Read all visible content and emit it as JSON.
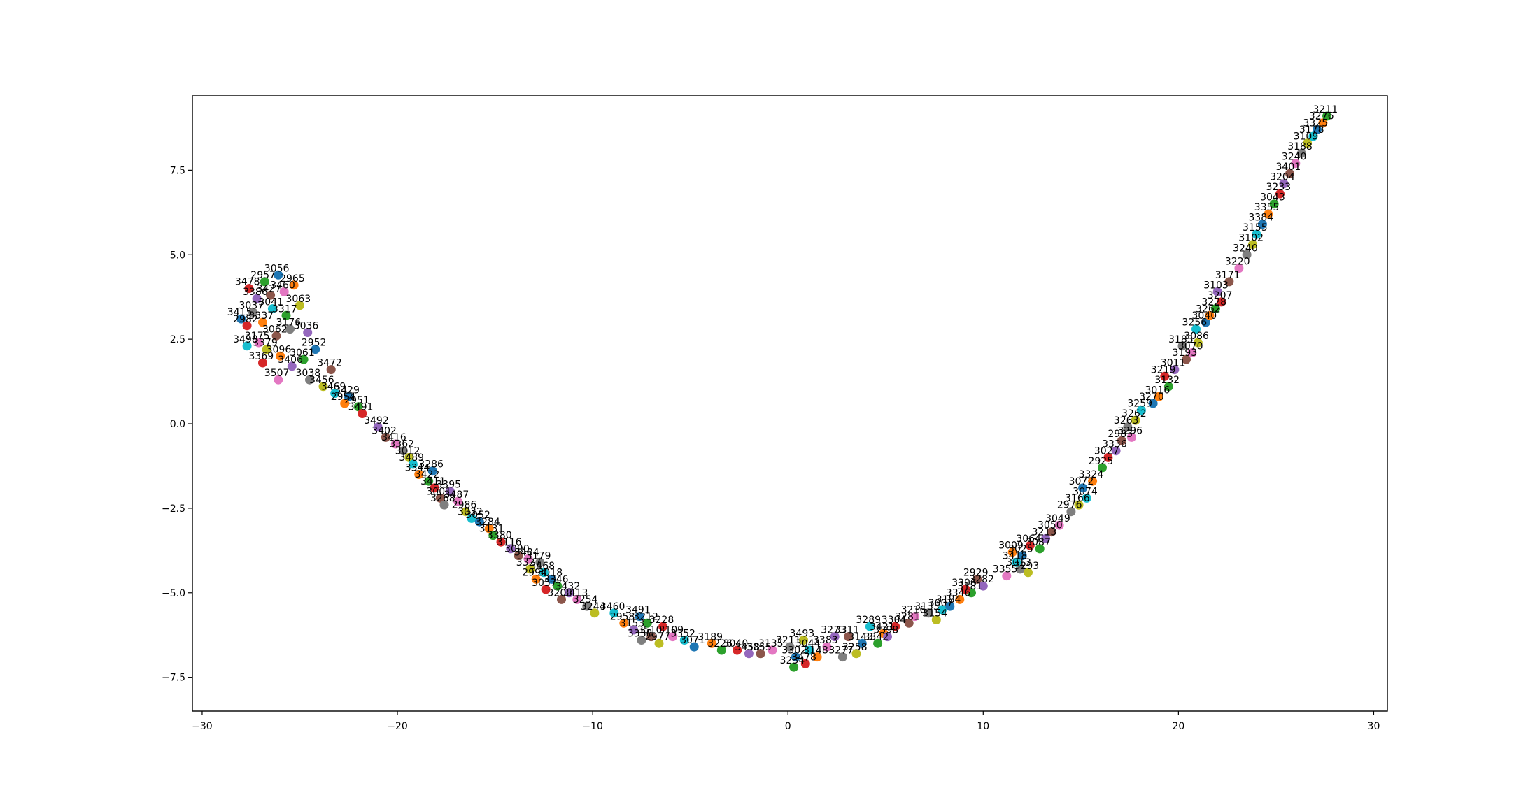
{
  "chart_data": {
    "type": "scatter",
    "title": "",
    "xlabel": "",
    "ylabel": "",
    "xlim": [
      -30.5,
      30.7
    ],
    "ylim": [
      -8.5,
      9.7
    ],
    "grid": false,
    "x_ticks": [
      -30,
      -20,
      -10,
      0,
      10,
      20,
      30
    ],
    "y_ticks": [
      -7.5,
      -5.0,
      -2.5,
      0.0,
      2.5,
      5.0,
      7.5
    ],
    "x_tick_labels": [
      "−30",
      "−20",
      "−10",
      "0",
      "10",
      "20",
      "30"
    ],
    "y_tick_labels": [
      "−7.5",
      "−5.0",
      "−2.5",
      "0.0",
      "2.5",
      "5.0",
      "7.5"
    ],
    "palette": [
      "#1f77b4",
      "#ff7f0e",
      "#2ca02c",
      "#d62728",
      "#9467bd",
      "#8c564b",
      "#e377c2",
      "#7f7f7f",
      "#bcbd22",
      "#17becf"
    ],
    "points": [
      {
        "x": -26.1,
        "y": 4.4,
        "label": "3056"
      },
      {
        "x": -25.3,
        "y": 4.1,
        "label": "2965"
      },
      {
        "x": -26.8,
        "y": 4.2,
        "label": "2957"
      },
      {
        "x": -27.6,
        "y": 4.0,
        "label": "3478"
      },
      {
        "x": -27.2,
        "y": 3.7,
        "label": "3386"
      },
      {
        "x": -26.5,
        "y": 3.8,
        "label": "3427"
      },
      {
        "x": -25.8,
        "y": 3.9,
        "label": "3460"
      },
      {
        "x": -27.4,
        "y": 3.3,
        "label": "3037"
      },
      {
        "x": -25.0,
        "y": 3.5,
        "label": "3063"
      },
      {
        "x": -26.4,
        "y": 3.4,
        "label": "3041"
      },
      {
        "x": -28.0,
        "y": 3.1,
        "label": "3415"
      },
      {
        "x": -26.9,
        "y": 3.0,
        "label": "3337"
      },
      {
        "x": -25.7,
        "y": 3.2,
        "label": "3317"
      },
      {
        "x": -27.7,
        "y": 2.9,
        "label": "2982"
      },
      {
        "x": -24.6,
        "y": 2.7,
        "label": "3036"
      },
      {
        "x": -26.2,
        "y": 2.6,
        "label": "3062"
      },
      {
        "x": -27.1,
        "y": 2.4,
        "label": "3175"
      },
      {
        "x": -25.5,
        "y": 2.8,
        "label": "3176"
      },
      {
        "x": -26.7,
        "y": 2.2,
        "label": "3379"
      },
      {
        "x": -27.7,
        "y": 2.3,
        "label": "3498"
      },
      {
        "x": -24.2,
        "y": 2.2,
        "label": "2952"
      },
      {
        "x": -26.0,
        "y": 2.0,
        "label": "3096"
      },
      {
        "x": -24.8,
        "y": 1.9,
        "label": "3061"
      },
      {
        "x": -26.9,
        "y": 1.8,
        "label": "3369"
      },
      {
        "x": -25.4,
        "y": 1.7,
        "label": "3406"
      },
      {
        "x": -23.4,
        "y": 1.6,
        "label": "3472"
      },
      {
        "x": -26.1,
        "y": 1.3,
        "label": "3507"
      },
      {
        "x": -24.5,
        "y": 1.3,
        "label": "3038"
      },
      {
        "x": -23.8,
        "y": 1.1,
        "label": "3456"
      },
      {
        "x": -23.2,
        "y": 0.9,
        "label": "3469"
      },
      {
        "x": -22.5,
        "y": 0.8,
        "label": "3429"
      },
      {
        "x": -22.7,
        "y": 0.6,
        "label": "2954"
      },
      {
        "x": -22.0,
        "y": 0.5,
        "label": "2951"
      },
      {
        "x": -21.8,
        "y": 0.3,
        "label": "3491"
      },
      {
        "x": -21.0,
        "y": -0.1,
        "label": "3492"
      },
      {
        "x": -20.6,
        "y": -0.4,
        "label": "3402"
      },
      {
        "x": -20.1,
        "y": -0.6,
        "label": "3416"
      },
      {
        "x": -19.7,
        "y": -0.8,
        "label": "3362"
      },
      {
        "x": -19.4,
        "y": -1.0,
        "label": "3012"
      },
      {
        "x": -19.2,
        "y": -1.2,
        "label": "3489"
      },
      {
        "x": -18.2,
        "y": -1.4,
        "label": "3286"
      },
      {
        "x": -18.9,
        "y": -1.5,
        "label": "3344"
      },
      {
        "x": -18.4,
        "y": -1.7,
        "label": "3422"
      },
      {
        "x": -18.1,
        "y": -1.9,
        "label": "3411"
      },
      {
        "x": -17.3,
        "y": -2.0,
        "label": "3395"
      },
      {
        "x": -17.8,
        "y": -2.2,
        "label": "3001"
      },
      {
        "x": -16.9,
        "y": -2.3,
        "label": "3487"
      },
      {
        "x": -17.6,
        "y": -2.4,
        "label": "3268"
      },
      {
        "x": -16.5,
        "y": -2.6,
        "label": "2986"
      },
      {
        "x": -16.2,
        "y": -2.8,
        "label": "3032"
      },
      {
        "x": -15.8,
        "y": -2.9,
        "label": "3052"
      },
      {
        "x": -15.3,
        "y": -3.1,
        "label": "3284"
      },
      {
        "x": -15.1,
        "y": -3.3,
        "label": "3131"
      },
      {
        "x": -14.7,
        "y": -3.5,
        "label": "3380"
      },
      {
        "x": -14.2,
        "y": -3.7,
        "label": "3116"
      },
      {
        "x": -13.8,
        "y": -3.9,
        "label": "3090"
      },
      {
        "x": -13.3,
        "y": -4.0,
        "label": "3484"
      },
      {
        "x": -12.7,
        "y": -4.1,
        "label": "3179"
      },
      {
        "x": -13.2,
        "y": -4.3,
        "label": "3327"
      },
      {
        "x": -12.5,
        "y": -4.4,
        "label": "3468"
      },
      {
        "x": -12.1,
        "y": -4.6,
        "label": "3018"
      },
      {
        "x": -12.9,
        "y": -4.6,
        "label": "2994"
      },
      {
        "x": -11.8,
        "y": -4.8,
        "label": "3346"
      },
      {
        "x": -12.4,
        "y": -4.9,
        "label": "3057"
      },
      {
        "x": -11.2,
        "y": -5.0,
        "label": "3432"
      },
      {
        "x": -11.6,
        "y": -5.2,
        "label": "3203"
      },
      {
        "x": -10.8,
        "y": -5.2,
        "label": "3413"
      },
      {
        "x": -10.3,
        "y": -5.4,
        "label": "3254"
      },
      {
        "x": -9.9,
        "y": -5.6,
        "label": "3244"
      },
      {
        "x": -8.9,
        "y": -5.6,
        "label": "3460"
      },
      {
        "x": -7.6,
        "y": -5.7,
        "label": "3491"
      },
      {
        "x": -8.4,
        "y": -5.9,
        "label": "2958"
      },
      {
        "x": -7.2,
        "y": -5.9,
        "label": "3212"
      },
      {
        "x": -6.4,
        "y": -6.0,
        "label": "3228"
      },
      {
        "x": -7.9,
        "y": -6.1,
        "label": "3153"
      },
      {
        "x": -7.0,
        "y": -6.3,
        "label": "3510"
      },
      {
        "x": -5.9,
        "y": -6.3,
        "label": "3109"
      },
      {
        "x": -7.5,
        "y": -6.4,
        "label": "3338"
      },
      {
        "x": -6.6,
        "y": -6.5,
        "label": "2977"
      },
      {
        "x": -5.3,
        "y": -6.4,
        "label": "3352"
      },
      {
        "x": -4.8,
        "y": -6.6,
        "label": "3071"
      },
      {
        "x": -3.9,
        "y": -6.5,
        "label": "3189"
      },
      {
        "x": -3.4,
        "y": -6.7,
        "label": "3226"
      },
      {
        "x": -2.6,
        "y": -6.7,
        "label": "3040"
      },
      {
        "x": -2.0,
        "y": -6.8,
        "label": "3458"
      },
      {
        "x": -1.4,
        "y": -6.8,
        "label": "3055"
      },
      {
        "x": -0.8,
        "y": -6.7,
        "label": "3135"
      },
      {
        "x": 0.1,
        "y": -6.6,
        "label": "3211"
      },
      {
        "x": 0.8,
        "y": -6.4,
        "label": "3493"
      },
      {
        "x": 1.1,
        "y": -6.7,
        "label": "3044"
      },
      {
        "x": 0.4,
        "y": -6.9,
        "label": "3302"
      },
      {
        "x": 1.5,
        "y": -6.9,
        "label": "3148"
      },
      {
        "x": 0.3,
        "y": -7.2,
        "label": "3234"
      },
      {
        "x": 0.9,
        "y": -7.1,
        "label": "3478"
      },
      {
        "x": 2.4,
        "y": -6.3,
        "label": "3273"
      },
      {
        "x": 3.1,
        "y": -6.3,
        "label": "3311"
      },
      {
        "x": 2.0,
        "y": -6.6,
        "label": "3383"
      },
      {
        "x": 2.8,
        "y": -6.9,
        "label": "3277"
      },
      {
        "x": 3.5,
        "y": -6.8,
        "label": "3258"
      },
      {
        "x": 4.2,
        "y": -6.0,
        "label": "3289"
      },
      {
        "x": 3.8,
        "y": -6.5,
        "label": "3143"
      },
      {
        "x": 4.9,
        "y": -6.2,
        "label": "3421"
      },
      {
        "x": 4.6,
        "y": -6.5,
        "label": "3342"
      },
      {
        "x": 5.5,
        "y": -6.0,
        "label": "3304"
      },
      {
        "x": 5.1,
        "y": -6.3,
        "label": "3398"
      },
      {
        "x": 6.2,
        "y": -5.9,
        "label": "3281"
      },
      {
        "x": 6.5,
        "y": -5.7,
        "label": "3216"
      },
      {
        "x": 7.2,
        "y": -5.6,
        "label": "3133"
      },
      {
        "x": 7.6,
        "y": -5.8,
        "label": "3154"
      },
      {
        "x": 7.9,
        "y": -5.5,
        "label": "3007"
      },
      {
        "x": 8.3,
        "y": -5.4,
        "label": "3184"
      },
      {
        "x": 8.8,
        "y": -5.2,
        "label": "3346"
      },
      {
        "x": 9.4,
        "y": -5.0,
        "label": "3181"
      },
      {
        "x": 9.1,
        "y": -4.9,
        "label": "3306"
      },
      {
        "x": 10.0,
        "y": -4.8,
        "label": "3282"
      },
      {
        "x": 9.7,
        "y": -4.6,
        "label": "2929"
      },
      {
        "x": 11.2,
        "y": -4.5,
        "label": "3355"
      },
      {
        "x": 11.9,
        "y": -4.3,
        "label": "3013"
      },
      {
        "x": 12.3,
        "y": -4.4,
        "label": "3293"
      },
      {
        "x": 11.7,
        "y": -4.1,
        "label": "3418"
      },
      {
        "x": 12.0,
        "y": -3.9,
        "label": "3025"
      },
      {
        "x": 11.5,
        "y": -3.8,
        "label": "3009"
      },
      {
        "x": 12.9,
        "y": -3.7,
        "label": "3087"
      },
      {
        "x": 12.4,
        "y": -3.6,
        "label": "3064"
      },
      {
        "x": 13.2,
        "y": -3.4,
        "label": "3213"
      },
      {
        "x": 13.5,
        "y": -3.2,
        "label": "3050"
      },
      {
        "x": 13.9,
        "y": -3.0,
        "label": "3049"
      },
      {
        "x": 14.5,
        "y": -2.6,
        "label": "2976"
      },
      {
        "x": 14.9,
        "y": -2.4,
        "label": "3166"
      },
      {
        "x": 15.3,
        "y": -2.2,
        "label": "3074"
      },
      {
        "x": 15.1,
        "y": -1.9,
        "label": "3072"
      },
      {
        "x": 15.6,
        "y": -1.7,
        "label": "3324"
      },
      {
        "x": 16.1,
        "y": -1.3,
        "label": "2925"
      },
      {
        "x": 16.4,
        "y": -1.0,
        "label": "3027"
      },
      {
        "x": 16.8,
        "y": -0.8,
        "label": "3336"
      },
      {
        "x": 17.1,
        "y": -0.5,
        "label": "2983"
      },
      {
        "x": 17.6,
        "y": -0.4,
        "label": "3296"
      },
      {
        "x": 17.4,
        "y": -0.1,
        "label": "3263"
      },
      {
        "x": 17.8,
        "y": 0.1,
        "label": "3262"
      },
      {
        "x": 18.1,
        "y": 0.4,
        "label": "3259"
      },
      {
        "x": 18.7,
        "y": 0.6,
        "label": "3270"
      },
      {
        "x": 19.0,
        "y": 0.8,
        "label": "3016"
      },
      {
        "x": 19.5,
        "y": 1.1,
        "label": "3132"
      },
      {
        "x": 19.3,
        "y": 1.4,
        "label": "3219"
      },
      {
        "x": 19.8,
        "y": 1.6,
        "label": "3011"
      },
      {
        "x": 20.4,
        "y": 1.9,
        "label": "3193"
      },
      {
        "x": 20.7,
        "y": 2.1,
        "label": "3070"
      },
      {
        "x": 20.2,
        "y": 2.3,
        "label": "3185"
      },
      {
        "x": 21.0,
        "y": 2.4,
        "label": "3086"
      },
      {
        "x": 20.9,
        "y": 2.8,
        "label": "3256"
      },
      {
        "x": 21.4,
        "y": 3.0,
        "label": "3040"
      },
      {
        "x": 21.6,
        "y": 3.2,
        "label": "3262"
      },
      {
        "x": 21.9,
        "y": 3.4,
        "label": "3228"
      },
      {
        "x": 22.2,
        "y": 3.6,
        "label": "3207"
      },
      {
        "x": 22.0,
        "y": 3.9,
        "label": "3103"
      },
      {
        "x": 22.6,
        "y": 4.2,
        "label": "3171"
      },
      {
        "x": 23.1,
        "y": 4.6,
        "label": "3220"
      },
      {
        "x": 23.5,
        "y": 5.0,
        "label": "3240"
      },
      {
        "x": 23.8,
        "y": 5.3,
        "label": "3102"
      },
      {
        "x": 24.0,
        "y": 5.6,
        "label": "3155"
      },
      {
        "x": 24.3,
        "y": 5.9,
        "label": "3384"
      },
      {
        "x": 24.6,
        "y": 6.2,
        "label": "3355"
      },
      {
        "x": 24.9,
        "y": 6.5,
        "label": "3043"
      },
      {
        "x": 25.2,
        "y": 6.8,
        "label": "3233"
      },
      {
        "x": 25.4,
        "y": 7.1,
        "label": "3204"
      },
      {
        "x": 25.7,
        "y": 7.4,
        "label": "3401"
      },
      {
        "x": 26.0,
        "y": 7.7,
        "label": "3240"
      },
      {
        "x": 26.3,
        "y": 8.0,
        "label": "3188"
      },
      {
        "x": 26.6,
        "y": 8.3,
        "label": "3109"
      },
      {
        "x": 26.9,
        "y": 8.5,
        "label": "3178"
      },
      {
        "x": 27.1,
        "y": 8.7,
        "label": "3325"
      },
      {
        "x": 27.4,
        "y": 8.9,
        "label": "3276"
      },
      {
        "x": 27.6,
        "y": 9.1,
        "label": "3211"
      }
    ]
  }
}
